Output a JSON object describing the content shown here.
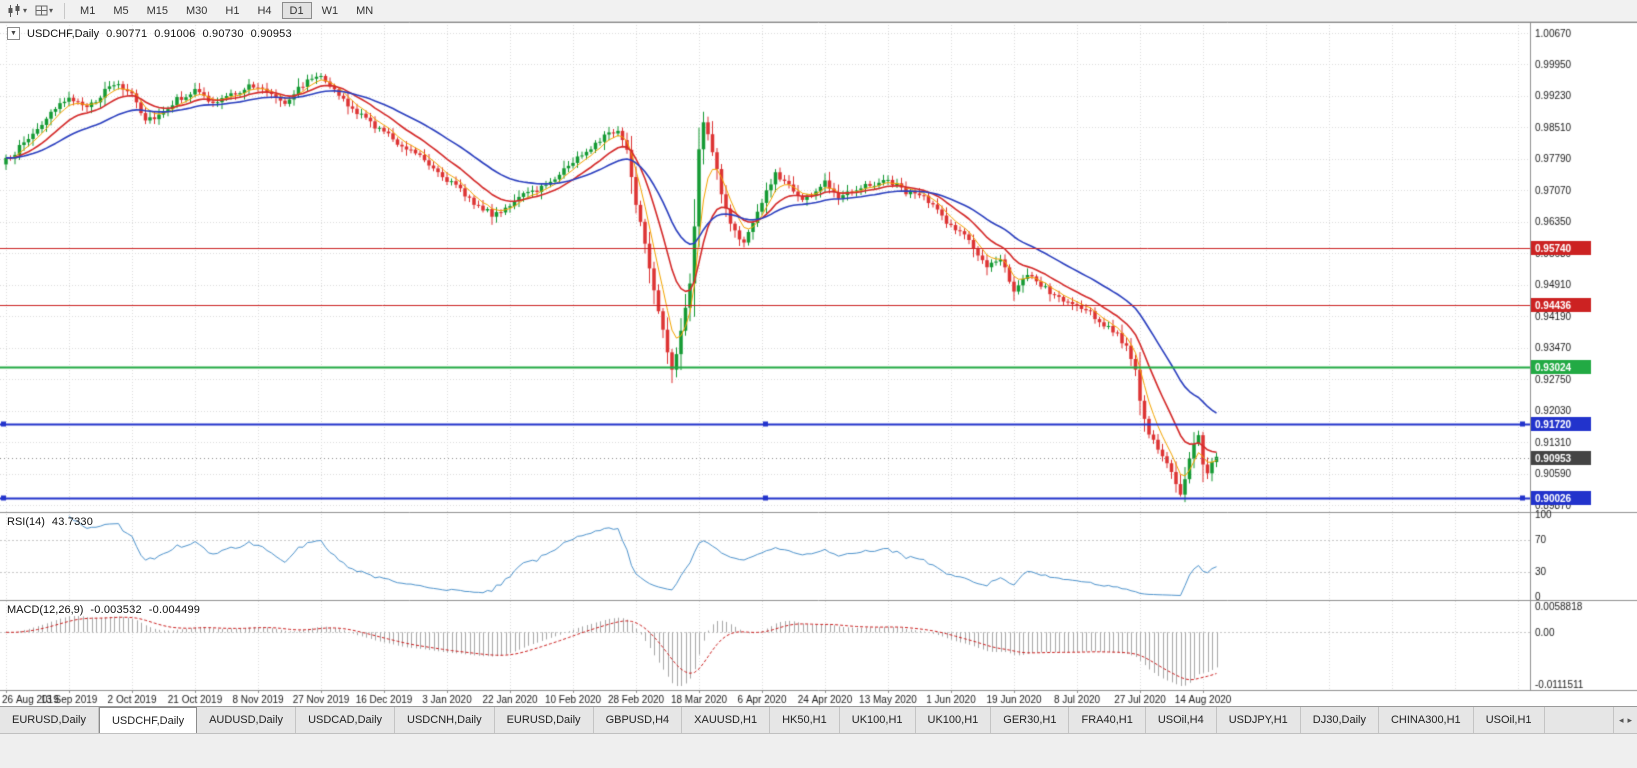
{
  "toolbar": {
    "timeframes": [
      "M1",
      "M5",
      "M15",
      "M30",
      "H1",
      "H4",
      "D1",
      "W1",
      "MN"
    ],
    "active_timeframe": "D1"
  },
  "chart": {
    "title": {
      "symbol": "USDCHF,Daily",
      "open": "0.90771",
      "high": "0.91006",
      "low": "0.90730",
      "close": "0.90953"
    },
    "price_axis_labels": [
      "1.00670",
      "0.99950",
      "0.99230",
      "0.98510",
      "0.97790",
      "0.97070",
      "0.96350",
      "0.95630",
      "0.94910",
      "0.94190",
      "0.93470",
      "0.92750",
      "0.92030",
      "0.91310",
      "0.90590",
      "0.89870"
    ],
    "last_price_badge": "0.90953",
    "hlines": [
      {
        "price": 0.9574,
        "label": "0.95740",
        "color": "#CC2222",
        "width": 1,
        "handles": false
      },
      {
        "price": 0.94436,
        "label": "0.94436",
        "color": "#CC2222",
        "width": 1,
        "handles": false
      },
      {
        "price": 0.93024,
        "label": "0.93024",
        "color": "#22AA44",
        "width": 2,
        "handles": false
      },
      {
        "price": 0.9172,
        "label": "0.91720",
        "color": "#2233CC",
        "width": 2,
        "handles": true
      },
      {
        "price": 0.90026,
        "label": "0.90026",
        "color": "#2233CC",
        "width": 2,
        "handles": true
      }
    ]
  },
  "rsi": {
    "name": "RSI(14)",
    "value": "43.7330",
    "axis_labels": [
      "100",
      "70",
      "30",
      "0"
    ],
    "levels": [
      70,
      30
    ]
  },
  "macd": {
    "name": "MACD(12,26,9)",
    "main_value": "-0.003532",
    "signal_value": "-0.004499",
    "axis_max": "0.0058818",
    "axis_zero": "0.00",
    "axis_min": "-0.0111511"
  },
  "date_axis": [
    "26 Aug 2019",
    "13 Sep 2019",
    "2 Oct 2019",
    "21 Oct 2019",
    "8 Nov 2019",
    "27 Nov 2019",
    "16 Dec 2019",
    "3 Jan 2020",
    "22 Jan 2020",
    "10 Feb 2020",
    "28 Feb 2020",
    "18 Mar 2020",
    "6 Apr 2020",
    "24 Apr 2020",
    "13 May 2020",
    "1 Jun 2020",
    "19 Jun 2020",
    "8 Jul 2020",
    "27 Jul 2020",
    "14 Aug 2020"
  ],
  "tabbar": {
    "tabs": [
      "EURUSD,Daily",
      "USDCHF,Daily",
      "AUDUSD,Daily",
      "USDCAD,Daily",
      "USDCNH,Daily",
      "EURUSD,Daily",
      "GBPUSD,H4",
      "XAUUSD,H1",
      "HK50,H1",
      "UK100,H1",
      "UK100,H1",
      "GER30,H1",
      "FRA40,H1",
      "USOil,H4",
      "USDJPY,H1",
      "DJ30,Daily",
      "CHINA300,H1",
      "USOil,H1"
    ],
    "active_index": 1
  },
  "colors": {
    "up": "#149A33",
    "down": "#DD3333",
    "ma_fast": "#F4A400",
    "ma_mid": "#D42A2A",
    "ma_slow": "#2B3FBF",
    "rsi": "#4F94CD",
    "macd_hist": "#A8A8A8",
    "macd_signal": "#CC2222",
    "grid": "#DADADA",
    "badge_last": "#444444",
    "axis_text": "#1a1a1a"
  },
  "chart_data": {
    "type": "candlestick",
    "symbol": "USDCHF",
    "timeframe": "Daily",
    "ohlc_display": {
      "open": 0.90771,
      "high": 0.91006,
      "low": 0.9073,
      "close": 0.90953
    },
    "candle_count": 270,
    "y_axis": {
      "max_label": "1.00670",
      "min_label": "0.89870",
      "step": 0.0072
    },
    "close_anchors": [
      [
        0,
        0.9775
      ],
      [
        4,
        0.9815
      ],
      [
        8,
        0.986
      ],
      [
        12,
        0.99
      ],
      [
        14,
        0.9925
      ],
      [
        17,
        0.9895
      ],
      [
        20,
        0.9915
      ],
      [
        24,
        0.995
      ],
      [
        28,
        0.993
      ],
      [
        31,
        0.987
      ],
      [
        34,
        0.988
      ],
      [
        38,
        0.9915
      ],
      [
        42,
        0.9935
      ],
      [
        46,
        0.9905
      ],
      [
        50,
        0.9925
      ],
      [
        54,
        0.9945
      ],
      [
        58,
        0.9935
      ],
      [
        62,
        0.991
      ],
      [
        66,
        0.995
      ],
      [
        70,
        0.9975
      ],
      [
        73,
        0.9935
      ],
      [
        76,
        0.99
      ],
      [
        80,
        0.987
      ],
      [
        84,
        0.984
      ],
      [
        88,
        0.981
      ],
      [
        92,
        0.979
      ],
      [
        96,
        0.975
      ],
      [
        100,
        0.9715
      ],
      [
        104,
        0.968
      ],
      [
        108,
        0.965
      ],
      [
        112,
        0.9675
      ],
      [
        116,
        0.97
      ],
      [
        120,
        0.972
      ],
      [
        124,
        0.9755
      ],
      [
        128,
        0.979
      ],
      [
        132,
        0.9825
      ],
      [
        136,
        0.9845
      ],
      [
        138,
        0.98
      ],
      [
        140,
        0.968
      ],
      [
        142,
        0.959
      ],
      [
        144,
        0.948
      ],
      [
        146,
        0.939
      ],
      [
        148,
        0.929
      ],
      [
        150,
        0.938
      ],
      [
        152,
        0.95
      ],
      [
        153,
        0.962
      ],
      [
        154,
        0.98
      ],
      [
        155,
        0.986
      ],
      [
        157,
        0.98
      ],
      [
        159,
        0.97
      ],
      [
        161,
        0.963
      ],
      [
        164,
        0.9585
      ],
      [
        168,
        0.968
      ],
      [
        171,
        0.9745
      ],
      [
        174,
        0.972
      ],
      [
        177,
        0.9685
      ],
      [
        180,
        0.9705
      ],
      [
        182,
        0.9725
      ],
      [
        185,
        0.9695
      ],
      [
        188,
        0.971
      ],
      [
        192,
        0.972
      ],
      [
        196,
        0.973
      ],
      [
        200,
        0.9705
      ],
      [
        204,
        0.969
      ],
      [
        207,
        0.966
      ],
      [
        210,
        0.9625
      ],
      [
        213,
        0.9605
      ],
      [
        216,
        0.956
      ],
      [
        218,
        0.9525
      ],
      [
        221,
        0.9555
      ],
      [
        224,
        0.948
      ],
      [
        227,
        0.951
      ],
      [
        230,
        0.949
      ],
      [
        233,
        0.9465
      ],
      [
        236,
        0.945
      ],
      [
        238,
        0.944
      ],
      [
        241,
        0.9425
      ],
      [
        244,
        0.94
      ],
      [
        247,
        0.938
      ],
      [
        249,
        0.9345
      ],
      [
        251,
        0.929
      ],
      [
        252,
        0.923
      ],
      [
        253,
        0.918
      ],
      [
        255,
        0.913
      ],
      [
        257,
        0.9095
      ],
      [
        259,
        0.906
      ],
      [
        261,
        0.9015
      ],
      [
        262,
        0.904
      ],
      [
        263,
        0.909
      ],
      [
        264,
        0.913
      ],
      [
        265,
        0.9148
      ],
      [
        266,
        0.9085
      ],
      [
        267,
        0.906
      ],
      [
        268,
        0.909
      ],
      [
        269,
        0.9095
      ]
    ],
    "moving_averages": [
      {
        "name": "fast",
        "period": 5,
        "color": "#F4A400"
      },
      {
        "name": "mid",
        "period": 13,
        "color": "#D42A2A"
      },
      {
        "name": "slow",
        "period": 30,
        "color": "#2B3FBF"
      }
    ],
    "horizontal_levels": [
      0.9574,
      0.94436,
      0.93024,
      0.9172,
      0.90026
    ],
    "rsi": {
      "period": 14,
      "last": 43.733,
      "levels": [
        70,
        30
      ],
      "range": [
        0,
        100
      ]
    },
    "macd": {
      "fast": 12,
      "slow": 26,
      "signal": 9,
      "last_main": -0.003532,
      "last_signal": -0.004499,
      "axis_range": [
        -0.0111511,
        0.0058818
      ]
    }
  }
}
